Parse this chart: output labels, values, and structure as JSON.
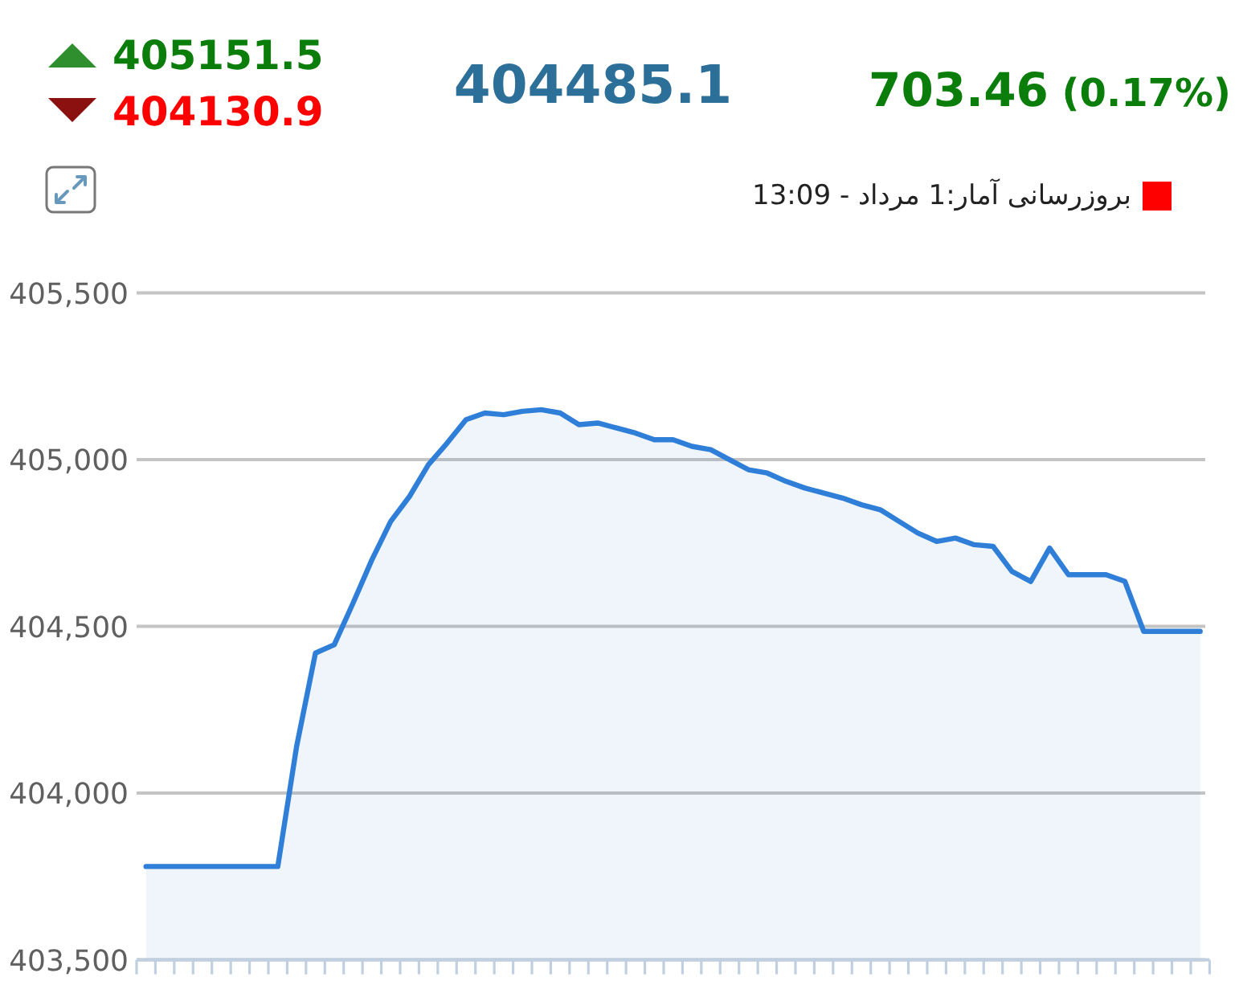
{
  "chart_data": {
    "type": "area",
    "categories": [
      null,
      null,
      null,
      null,
      null,
      null,
      null,
      null,
      null,
      null,
      null,
      null,
      null,
      null,
      null,
      null,
      null,
      null,
      null,
      null,
      null,
      null,
      null,
      null,
      null,
      null,
      null,
      null,
      null,
      null,
      null,
      null,
      null,
      null,
      null,
      null,
      null,
      null,
      null,
      null,
      null,
      null,
      null,
      null,
      null,
      null,
      null,
      null,
      null,
      null,
      null,
      null,
      null,
      null,
      null,
      null,
      null
    ],
    "series": [
      {
        "color": "#2f7ed8",
        "values": [
          403780,
          403780,
          403780,
          403780,
          403780,
          403780,
          403780,
          403780,
          404140,
          404420,
          404445,
          404570,
          404700,
          404815,
          404890,
          404985,
          405050,
          405120,
          405140,
          405135,
          405145,
          405150,
          405140,
          405105,
          405110,
          405095,
          405080,
          405060,
          405060,
          405040,
          405030,
          405000,
          404970,
          404960,
          404935,
          404915,
          404900,
          404885,
          404865,
          404850,
          404815,
          404780,
          404755,
          404765,
          404745,
          404740,
          404665,
          404635,
          404735,
          404655,
          404655,
          404655,
          404635,
          404485,
          404485,
          404485,
          404485
        ]
      }
    ],
    "ylim": [
      403500,
      405500
    ],
    "yticks": [
      {
        "value": 403500,
        "label": "403,500"
      },
      {
        "value": 404000,
        "label": "404,000"
      },
      {
        "value": 404500,
        "label": "404,500"
      },
      {
        "value": 405000,
        "label": "405,000"
      },
      {
        "value": 405500,
        "label": "405,500"
      }
    ],
    "grid": "y",
    "annotations": [
      "405151.5",
      "404130.9",
      "404485.1",
      "703.46 (0.17%)",
      "بروزرسانی آمار:1 مرداد - 13:09"
    ]
  }
}
